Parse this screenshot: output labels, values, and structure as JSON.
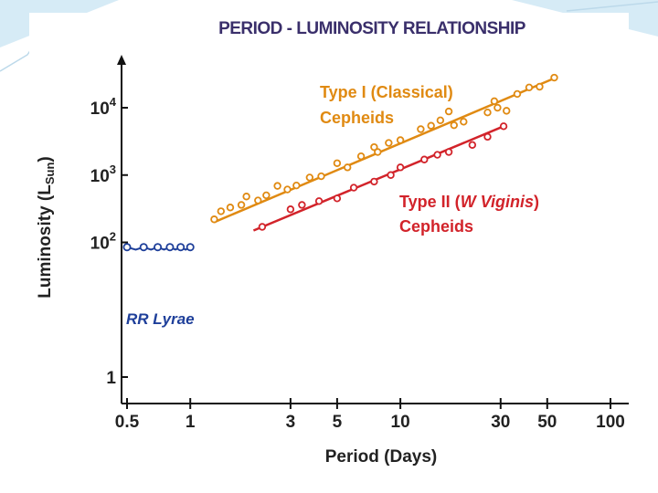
{
  "slide": {
    "background_color": "#ffffff",
    "accent_color": "#cfe6f3",
    "panel_color": "#ffffff"
  },
  "chart_data": {
    "type": "scatter",
    "title": "PERIOD - LUMINOSITY RELATIONSHIP",
    "xlabel": "Period (Days)",
    "ylabel": "Luminosity (L",
    "ylabel_subscript": "Sun",
    "ylabel_close": ")",
    "x_scale": "log",
    "y_scale": "log",
    "xlim": [
      0.5,
      100
    ],
    "ylim": [
      0.5,
      40000
    ],
    "grid": false,
    "x_ticks": [
      {
        "value": 0.5,
        "label": "0.5"
      },
      {
        "value": 1,
        "label": "1"
      },
      {
        "value": 3,
        "label": "3"
      },
      {
        "value": 5,
        "label": "5"
      },
      {
        "value": 10,
        "label": "10"
      },
      {
        "value": 30,
        "label": "30"
      },
      {
        "value": 50,
        "label": "50"
      },
      {
        "value": 100,
        "label": "100"
      }
    ],
    "y_ticks": [
      {
        "value": 1,
        "base": "1",
        "exp": ""
      },
      {
        "value": 100,
        "base": "10",
        "exp": "2"
      },
      {
        "value": 1000,
        "base": "10",
        "exp": "3"
      },
      {
        "value": 10000,
        "base": "10",
        "exp": "4"
      }
    ],
    "series": [
      {
        "name": "Type I (Classical) Cepheids",
        "label_lines": [
          "Type I (Classical)",
          "Cepheids"
        ],
        "color": "#e08a12",
        "marker": "circle",
        "line": {
          "x": [
            1.3,
            55
          ],
          "y": [
            200,
            28000
          ]
        },
        "points": [
          {
            "x": 1.3,
            "y": 220
          },
          {
            "x": 1.4,
            "y": 290
          },
          {
            "x": 1.55,
            "y": 330
          },
          {
            "x": 1.75,
            "y": 360
          },
          {
            "x": 1.85,
            "y": 480
          },
          {
            "x": 2.1,
            "y": 420
          },
          {
            "x": 2.3,
            "y": 500
          },
          {
            "x": 2.6,
            "y": 690
          },
          {
            "x": 2.9,
            "y": 610
          },
          {
            "x": 3.2,
            "y": 700
          },
          {
            "x": 3.7,
            "y": 920
          },
          {
            "x": 4.2,
            "y": 960
          },
          {
            "x": 5.0,
            "y": 1500
          },
          {
            "x": 5.6,
            "y": 1300
          },
          {
            "x": 6.5,
            "y": 1900
          },
          {
            "x": 7.5,
            "y": 2600
          },
          {
            "x": 7.8,
            "y": 2200
          },
          {
            "x": 8.8,
            "y": 3000
          },
          {
            "x": 10.0,
            "y": 3300
          },
          {
            "x": 12.5,
            "y": 4800
          },
          {
            "x": 14.0,
            "y": 5400
          },
          {
            "x": 15.5,
            "y": 6500
          },
          {
            "x": 17.0,
            "y": 8800
          },
          {
            "x": 18.0,
            "y": 5500
          },
          {
            "x": 20.0,
            "y": 6200
          },
          {
            "x": 26.0,
            "y": 8500
          },
          {
            "x": 28.0,
            "y": 12500
          },
          {
            "x": 29.0,
            "y": 10000
          },
          {
            "x": 32.0,
            "y": 9000
          },
          {
            "x": 36.0,
            "y": 16000
          },
          {
            "x": 41.0,
            "y": 20000
          },
          {
            "x": 46.0,
            "y": 20500
          },
          {
            "x": 54.0,
            "y": 28000
          }
        ]
      },
      {
        "name": "Type II (W Viginis) Cepheids",
        "label_lines": [
          "Type II (",
          "W Viginis",
          ")",
          "Cepheids"
        ],
        "color": "#d2232a",
        "marker": "circle",
        "line": {
          "x": [
            2.0,
            31
          ],
          "y": [
            150,
            5300
          ]
        },
        "points": [
          {
            "x": 2.2,
            "y": 170
          },
          {
            "x": 3.0,
            "y": 310
          },
          {
            "x": 3.4,
            "y": 360
          },
          {
            "x": 4.1,
            "y": 410
          },
          {
            "x": 5.0,
            "y": 450
          },
          {
            "x": 6.0,
            "y": 650
          },
          {
            "x": 7.5,
            "y": 800
          },
          {
            "x": 9.0,
            "y": 1000
          },
          {
            "x": 10.0,
            "y": 1300
          },
          {
            "x": 13.0,
            "y": 1700
          },
          {
            "x": 15.0,
            "y": 2000
          },
          {
            "x": 17.0,
            "y": 2200
          },
          {
            "x": 22.0,
            "y": 2800
          },
          {
            "x": 26.0,
            "y": 3700
          },
          {
            "x": 31.0,
            "y": 5300
          }
        ]
      },
      {
        "name": "RR Lyrae",
        "label_lines": [
          "RR Lyrae"
        ],
        "color": "#1e3f9a",
        "marker": "circle",
        "line": {
          "x": [
            0.5,
            0.55,
            0.6,
            0.65,
            0.7,
            0.75,
            0.8,
            0.85,
            0.9,
            0.95,
            1.0
          ],
          "y": [
            85,
            78,
            85,
            78,
            85,
            78,
            85,
            78,
            85,
            78,
            85
          ]
        },
        "points": [
          {
            "x": 0.5,
            "y": 85
          },
          {
            "x": 0.6,
            "y": 85
          },
          {
            "x": 0.7,
            "y": 85
          },
          {
            "x": 0.8,
            "y": 85
          },
          {
            "x": 0.9,
            "y": 85
          },
          {
            "x": 1.0,
            "y": 85
          }
        ]
      }
    ]
  }
}
